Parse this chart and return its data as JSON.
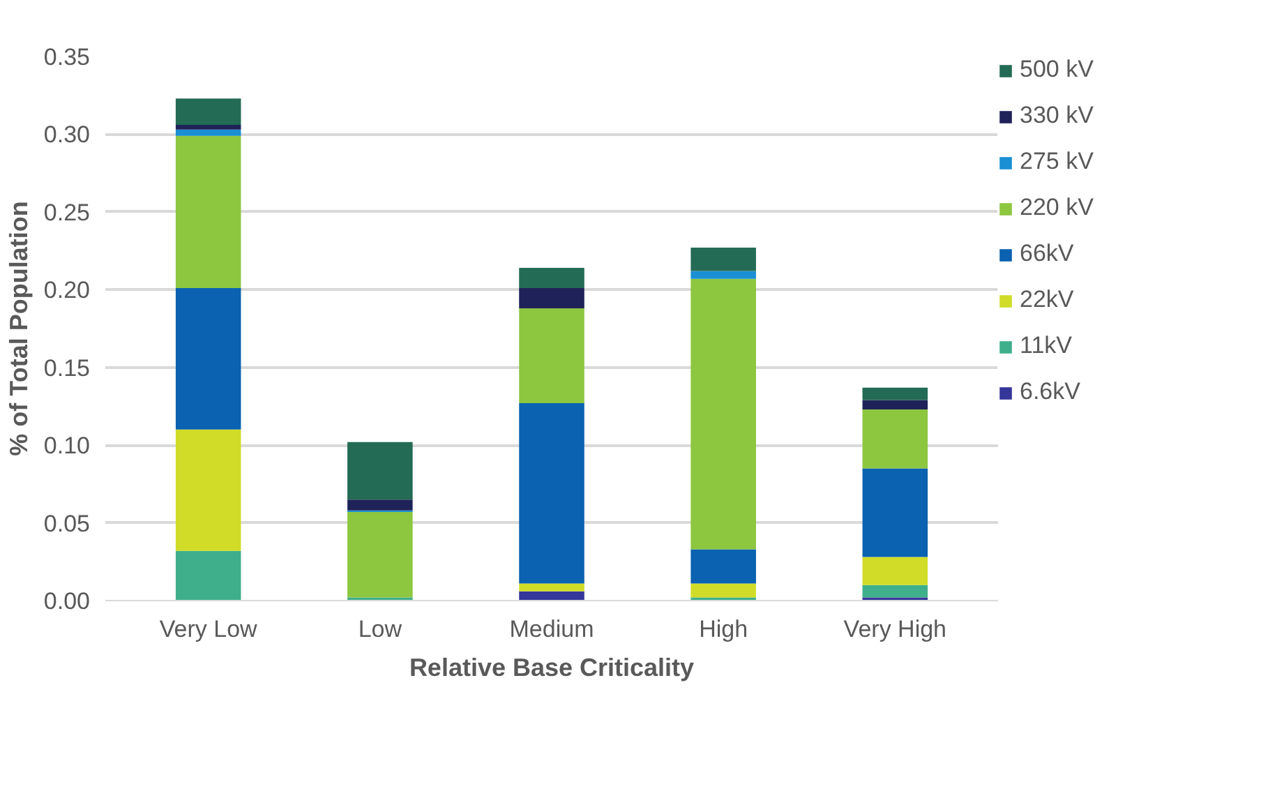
{
  "chart_data": {
    "type": "bar",
    "stacked": true,
    "xlabel": "Relative Base Criticality",
    "ylabel": "% of Total Population",
    "categories": [
      "Very Low",
      "Low",
      "Medium",
      "High",
      "Very High"
    ],
    "series": [
      {
        "name": "6.6kV",
        "color": "#35369a",
        "values": [
          0,
          0,
          0.006,
          0,
          0.002
        ]
      },
      {
        "name": "11kV",
        "color": "#3faf8b",
        "values": [
          0.032,
          0.002,
          0,
          0.002,
          0.008
        ]
      },
      {
        "name": "22kV",
        "color": "#d0dc27",
        "values": [
          0.078,
          0,
          0.005,
          0.009,
          0.018
        ]
      },
      {
        "name": "66kV",
        "color": "#0a62b0",
        "values": [
          0.091,
          0,
          0.116,
          0.022,
          0.057
        ]
      },
      {
        "name": "220 kV",
        "color": "#8dc63f",
        "values": [
          0.098,
          0.055,
          0.061,
          0.174,
          0.038
        ]
      },
      {
        "name": "275 kV",
        "color": "#1a8fd4",
        "values": [
          0.004,
          0.001,
          0,
          0.005,
          0
        ]
      },
      {
        "name": "330 kV",
        "color": "#1f2258",
        "values": [
          0.003,
          0.007,
          0.013,
          0,
          0.006
        ]
      },
      {
        "name": "500 kV",
        "color": "#236b54",
        "values": [
          0.017,
          0.037,
          0.013,
          0.015,
          0.008
        ]
      }
    ],
    "ylim": [
      0,
      0.35
    ],
    "yticks": [
      {
        "value": 0,
        "label": "0.00"
      },
      {
        "value": 0.05,
        "label": "0.05"
      },
      {
        "value": 0.1,
        "label": "0.10"
      },
      {
        "value": 0.15,
        "label": "0.15"
      },
      {
        "value": 0.2,
        "label": "0.20"
      },
      {
        "value": 0.25,
        "label": "0.25"
      },
      {
        "value": 0.3,
        "label": "0.30"
      },
      {
        "value": 0.35,
        "label": "0.35"
      }
    ],
    "grid": "y",
    "legend": "right"
  }
}
